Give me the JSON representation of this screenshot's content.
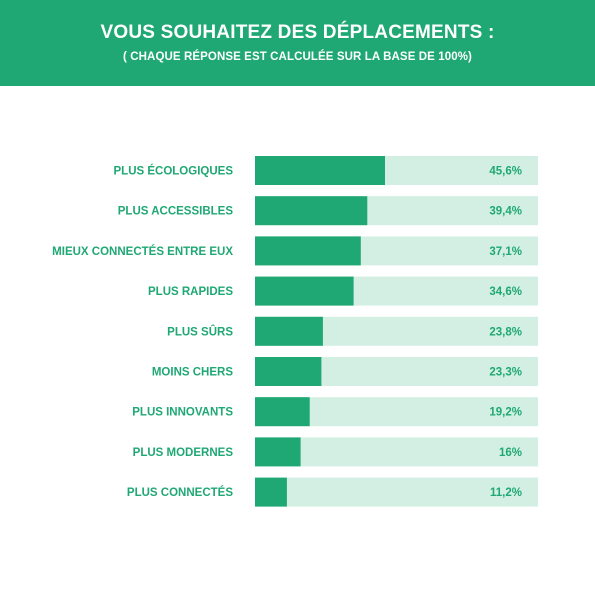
{
  "header": {
    "title": "VOUS SOUHAITEZ DES DÉPLACEMENTS :",
    "subtitle": "( CHAQUE RÉPONSE EST CALCULÉE SUR LA BASE DE 100%)"
  },
  "colors": {
    "brand": "#1fa873",
    "bar_fill": "#1fa873",
    "bar_track": "#d3efe3",
    "text": "#1fa873"
  },
  "chart_data": {
    "type": "bar",
    "orientation": "horizontal",
    "title": "VOUS SOUHAITEZ DES DÉPLACEMENTS :",
    "subtitle": "( CHAQUE RÉPONSE EST CALCULÉE SUR LA BASE DE 100%)",
    "categories": [
      "PLUS ÉCOLOGIQUES",
      "PLUS ACCESSIBLES",
      "MIEUX CONNECTÉS ENTRE EUX",
      "PLUS RAPIDES",
      "PLUS SÛRS",
      "MOINS CHERS",
      "PLUS INNOVANTS",
      "PLUS MODERNES",
      "PLUS CONNECTÉS"
    ],
    "values": [
      45.6,
      39.4,
      37.1,
      34.6,
      23.8,
      23.3,
      19.2,
      16,
      11.2
    ],
    "value_labels": [
      "45,6%",
      "39,4%",
      "37,1%",
      "34,6%",
      "23,8%",
      "23,3%",
      "19,2%",
      "16%",
      "11,2%"
    ],
    "xlim": [
      0,
      100
    ],
    "grid": false,
    "legend": "none"
  }
}
